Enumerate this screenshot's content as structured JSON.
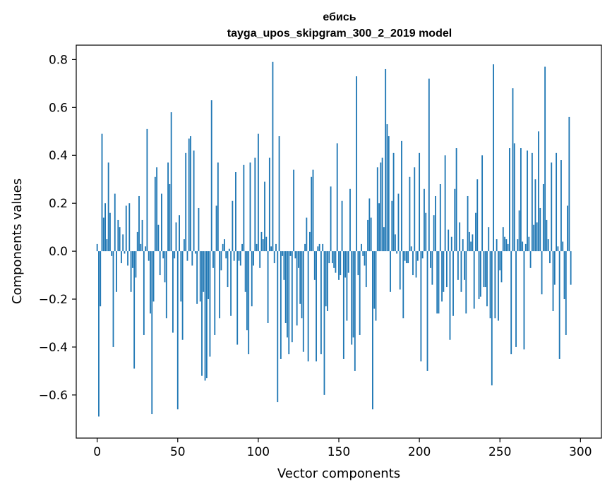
{
  "chart_data": {
    "type": "bar",
    "title": "ебись",
    "subtitle": "tayga_upos_skipgram_300_2_2019 model",
    "xlabel": "Vector components",
    "ylabel": "Components values",
    "xlim": [
      -13,
      313
    ],
    "ylim": [
      -0.78,
      0.86
    ],
    "xticks": [
      0,
      50,
      100,
      150,
      200,
      250,
      300
    ],
    "yticks": [
      -0.6,
      -0.4,
      -0.2,
      0.0,
      0.2,
      0.4,
      0.6,
      0.8
    ],
    "ytick_labels": [
      "−0.6",
      "−0.4",
      "−0.2",
      "0.0",
      "0.2",
      "0.4",
      "0.6",
      "0.8"
    ],
    "grid": false,
    "bar_color": "#1f77b4",
    "values": [
      0.03,
      -0.69,
      -0.23,
      0.49,
      0.14,
      0.2,
      0.05,
      0.37,
      0.16,
      -0.02,
      -0.4,
      0.24,
      -0.17,
      0.13,
      0.1,
      -0.05,
      0.07,
      -0.01,
      0.19,
      -0.06,
      0.2,
      -0.17,
      -0.07,
      -0.49,
      -0.11,
      0.08,
      0.23,
      0.03,
      0.13,
      -0.35,
      0.02,
      0.51,
      -0.04,
      -0.26,
      -0.68,
      -0.21,
      0.31,
      0.35,
      0.11,
      -0.1,
      0.24,
      -0.03,
      -0.13,
      -0.28,
      0.37,
      0.28,
      0.58,
      -0.34,
      -0.03,
      0.12,
      -0.66,
      0.15,
      -0.21,
      -0.37,
      0.05,
      0.41,
      -0.04,
      0.47,
      0.48,
      -0.06,
      0.42,
      -0.01,
      -0.22,
      0.18,
      -0.21,
      -0.52,
      -0.17,
      -0.54,
      -0.53,
      -0.2,
      -0.44,
      0.63,
      -0.07,
      -0.35,
      0.19,
      0.37,
      -0.28,
      -0.08,
      0.03,
      0.05,
      -0.03,
      -0.15,
      0.01,
      -0.27,
      0.21,
      -0.04,
      0.33,
      -0.39,
      -0.04,
      -0.06,
      0.03,
      0.36,
      -0.17,
      -0.33,
      -0.43,
      0.37,
      -0.23,
      -0.06,
      0.39,
      0.03,
      0.49,
      -0.07,
      0.08,
      0.05,
      0.29,
      0.06,
      -0.3,
      0.39,
      0.02,
      0.79,
      -0.05,
      0.03,
      -0.63,
      0.48,
      -0.45,
      -0.02,
      -0.12,
      -0.3,
      -0.36,
      -0.43,
      -0.02,
      -0.38,
      0.34,
      -0.03,
      -0.31,
      -0.07,
      -0.22,
      -0.28,
      -0.42,
      0.03,
      0.14,
      -0.46,
      0.08,
      0.31,
      0.34,
      -0.12,
      -0.46,
      0.02,
      0.03,
      -0.43,
      0.03,
      -0.6,
      -0.23,
      -0.25,
      -0.05,
      0.27,
      -0.05,
      -0.07,
      -0.09,
      0.45,
      -0.12,
      -0.1,
      0.21,
      -0.45,
      -0.11,
      -0.29,
      -0.09,
      0.26,
      -0.39,
      -0.36,
      -0.5,
      0.73,
      -0.1,
      -0.35,
      0.03,
      -0.02,
      -0.06,
      -0.15,
      0.13,
      0.22,
      0.14,
      -0.66,
      -0.24,
      -0.29,
      0.35,
      0.2,
      0.37,
      0.39,
      0.1,
      0.76,
      0.53,
      0.48,
      -0.17,
      0.21,
      0.41,
      0.07,
      -0.01,
      0.24,
      -0.16,
      0.46,
      -0.28,
      -0.04,
      -0.05,
      -0.05,
      0.31,
      0.02,
      -0.1,
      0.35,
      -0.11,
      -0.04,
      0.41,
      -0.46,
      -0.03,
      0.26,
      0.16,
      -0.5,
      0.72,
      -0.07,
      -0.14,
      0.15,
      0.23,
      -0.26,
      -0.26,
      0.28,
      -0.21,
      -0.17,
      0.4,
      -0.15,
      0.09,
      -0.37,
      0.06,
      -0.27,
      0.26,
      0.43,
      -0.12,
      0.12,
      -0.17,
      0.05,
      -0.12,
      -0.26,
      0.23,
      0.08,
      0.04,
      0.07,
      -0.24,
      0.16,
      0.3,
      -0.2,
      -0.19,
      0.4,
      -0.15,
      -0.15,
      -0.23,
      0.1,
      -0.28,
      -0.56,
      0.78,
      -0.28,
      0.05,
      -0.29,
      -0.08,
      -0.13,
      0.1,
      0.06,
      0.05,
      0.03,
      0.43,
      -0.43,
      0.68,
      0.45,
      -0.4,
      0.05,
      0.17,
      0.43,
      0.04,
      -0.41,
      0.03,
      0.42,
      0.06,
      -0.07,
      0.41,
      0.11,
      0.3,
      0.12,
      0.5,
      0.18,
      -0.18,
      0.28,
      0.77,
      0.13,
      0.05,
      -0.05,
      0.37,
      -0.25,
      -0.14,
      0.41,
      0.02,
      -0.45,
      0.38,
      0.04,
      -0.2,
      -0.35,
      0.19,
      0.56,
      -0.14
    ]
  }
}
